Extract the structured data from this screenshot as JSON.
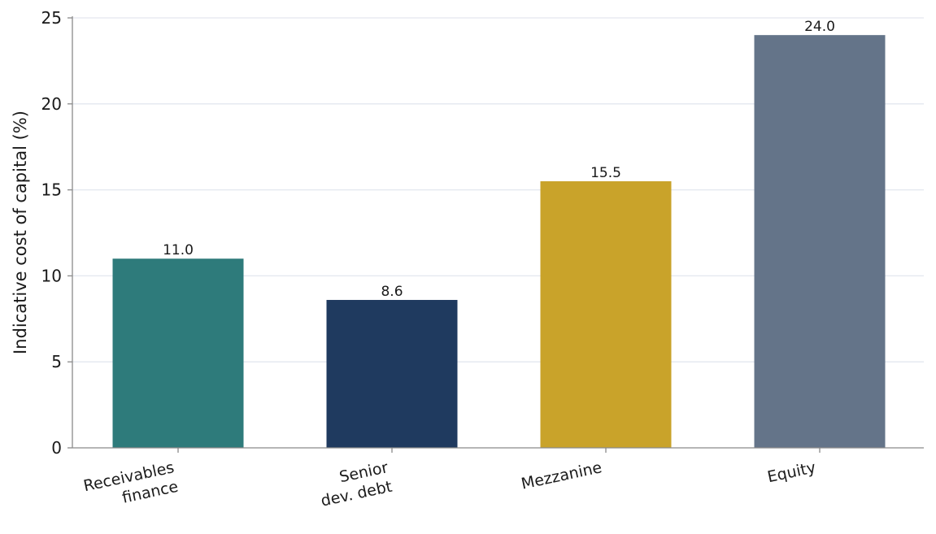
{
  "chart_data": {
    "type": "bar",
    "title": "",
    "xlabel": "",
    "ylabel": "Indicative cost of capital (%)",
    "ylim": [
      0,
      25
    ],
    "yticks": [
      "0",
      "5",
      "10",
      "15",
      "20",
      "25"
    ],
    "categories": [
      [
        "Receivables",
        "finance"
      ],
      [
        "Senior",
        "dev. debt"
      ],
      [
        "Mezzanine"
      ],
      [
        "Equity"
      ]
    ],
    "values": [
      11.0,
      8.6,
      15.5,
      24.0
    ],
    "data_labels": [
      "11.0",
      "8.6",
      "15.5",
      "24.0"
    ],
    "colors": [
      "#2e7b7b",
      "#1f3a5f",
      "#c9a32a",
      "#647489"
    ],
    "grid": "horizontal",
    "grid_color": "#e3e7ef",
    "axis_color": "#8a8a8a",
    "legend": "none"
  }
}
